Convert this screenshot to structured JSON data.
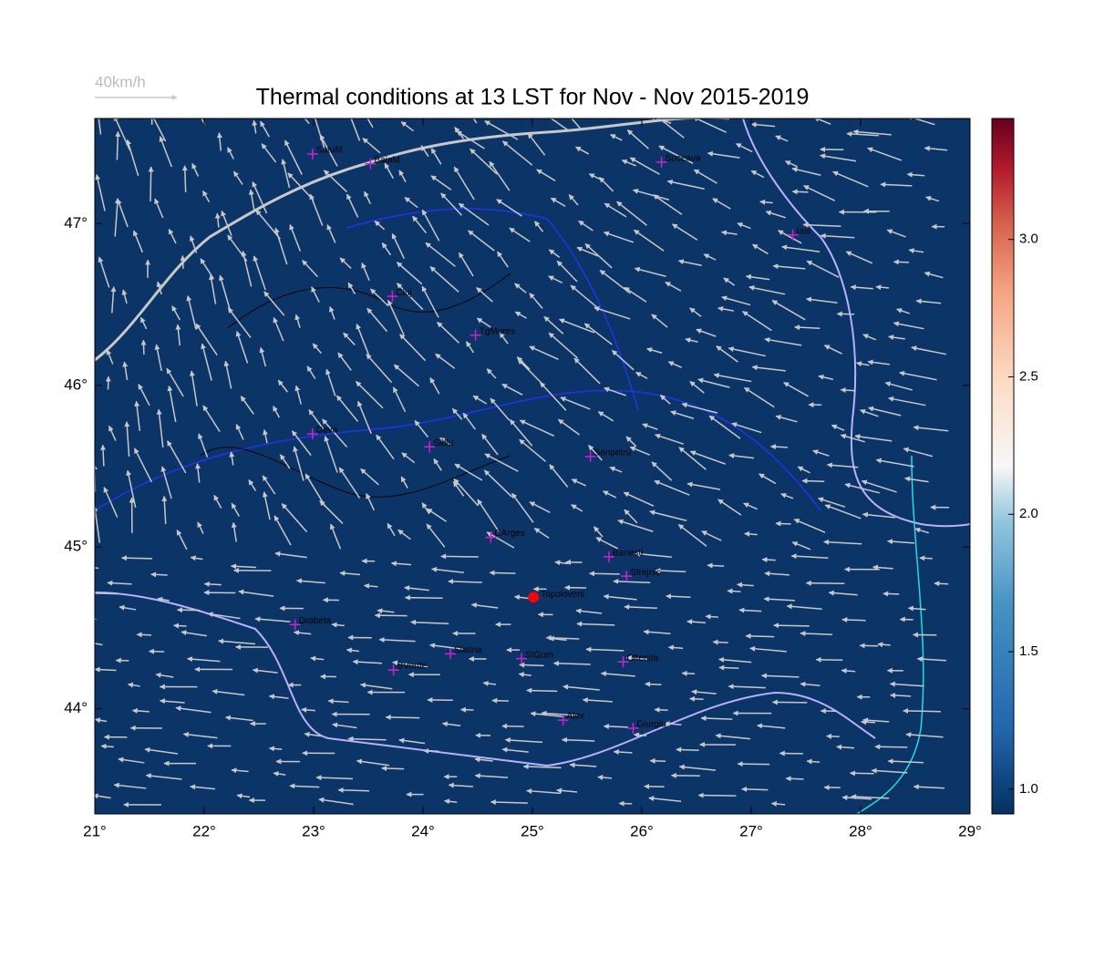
{
  "title": "Thermal conditions at 13 LST for Nov - Nov  2015-2019",
  "scale_label": "40km/h",
  "map": {
    "xlim": [
      21,
      29
    ],
    "ylim": [
      43.35,
      47.65
    ],
    "xticks": [
      {
        "value": 21,
        "label": "21°"
      },
      {
        "value": 22,
        "label": "22°"
      },
      {
        "value": 23,
        "label": "23°"
      },
      {
        "value": 24,
        "label": "24°"
      },
      {
        "value": 25,
        "label": "25°"
      },
      {
        "value": 26,
        "label": "26°"
      },
      {
        "value": 27,
        "label": "27°"
      },
      {
        "value": 28,
        "label": "28°"
      },
      {
        "value": 29,
        "label": "29°"
      }
    ],
    "yticks": [
      {
        "value": 44,
        "label": "44°"
      },
      {
        "value": 45,
        "label": "45°"
      },
      {
        "value": 46,
        "label": "46°"
      },
      {
        "value": 47,
        "label": "47°"
      }
    ]
  },
  "colorbar": {
    "lim": [
      0.91,
      3.44
    ],
    "ticks": [
      {
        "value": 1,
        "label": "1.0"
      },
      {
        "value": 1.5,
        "label": "1.5"
      },
      {
        "value": 2,
        "label": "2.0"
      },
      {
        "value": 2.5,
        "label": "2.5"
      },
      {
        "value": 3,
        "label": "3.0"
      }
    ]
  },
  "cities": [
    {
      "name": "SatuM",
      "lon": 22.99,
      "lat": 47.43
    },
    {
      "name": "BaiaM",
      "lon": 23.52,
      "lat": 47.37
    },
    {
      "name": "Suceava",
      "lon": 26.18,
      "lat": 47.38
    },
    {
      "name": "Iasi",
      "lon": 27.38,
      "lat": 46.93
    },
    {
      "name": "Cluj",
      "lon": 23.72,
      "lat": 46.55
    },
    {
      "name": "TgMures",
      "lon": 24.48,
      "lat": 46.31
    },
    {
      "name": "Deva",
      "lon": 22.99,
      "lat": 45.7
    },
    {
      "name": "Sibiu",
      "lon": 24.06,
      "lat": 45.62
    },
    {
      "name": "Sanpetru",
      "lon": 25.53,
      "lat": 45.56
    },
    {
      "name": "CArges",
      "lon": 24.62,
      "lat": 45.06
    },
    {
      "name": "Banesti",
      "lon": 25.7,
      "lat": 44.94
    },
    {
      "name": "Strejnic",
      "lon": 25.86,
      "lat": 44.82
    },
    {
      "name": "Drobeta",
      "lon": 22.83,
      "lat": 44.52
    },
    {
      "name": "Slatina",
      "lon": 24.25,
      "lat": 44.34
    },
    {
      "name": "StGum",
      "lon": 24.9,
      "lat": 44.31
    },
    {
      "name": "Oltenita",
      "lon": 25.83,
      "lat": 44.29
    },
    {
      "name": "BVerde",
      "lon": 23.73,
      "lat": 44.24
    },
    {
      "name": "Alex",
      "lon": 25.28,
      "lat": 43.93
    },
    {
      "name": "Giurgiu",
      "lon": 25.92,
      "lat": 43.88
    }
  ],
  "site": {
    "name": "Topoloveni",
    "lon": 25.01,
    "lat": 44.69
  }
}
